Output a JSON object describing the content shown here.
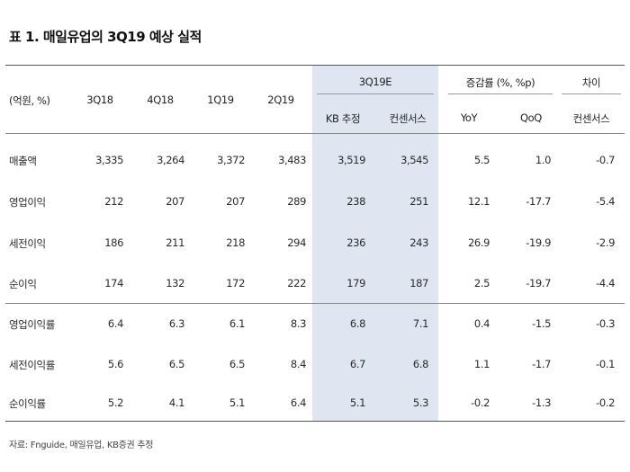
{
  "title": "표 1. 매일유업의 3Q19 예상 실적",
  "header": {
    "unit": "(억원, %)",
    "periods": [
      "3Q18",
      "4Q18",
      "1Q19",
      "2Q19"
    ],
    "estimate_group": "3Q19E",
    "estimate_cols": [
      "KB 추정",
      "컨센서스"
    ],
    "growth_group": "증감률 (%, %p)",
    "growth_cols": [
      "YoY",
      "QoQ"
    ],
    "diff_group": "차이",
    "diff_col": "컨센서스"
  },
  "rows": [
    {
      "label": "매출액",
      "values": [
        "3,335",
        "3,264",
        "3,372",
        "3,483",
        "3,519",
        "3,545",
        "5.5",
        "1.0",
        "-0.7"
      ]
    },
    {
      "label": "영업이익",
      "values": [
        "212",
        "207",
        "207",
        "289",
        "238",
        "251",
        "12.1",
        "-17.7",
        "-5.4"
      ]
    },
    {
      "label": "세전이익",
      "values": [
        "186",
        "211",
        "218",
        "294",
        "236",
        "243",
        "26.9",
        "-19.9",
        "-2.9"
      ]
    },
    {
      "label": "순이익",
      "values": [
        "174",
        "132",
        "172",
        "222",
        "179",
        "187",
        "2.5",
        "-19.7",
        "-4.4"
      ]
    },
    {
      "label": "영업이익률",
      "values": [
        "6.4",
        "6.3",
        "6.1",
        "8.3",
        "6.8",
        "7.1",
        "0.4",
        "-1.5",
        "-0.3"
      ]
    },
    {
      "label": "세전이익률",
      "values": [
        "5.6",
        "6.5",
        "6.5",
        "8.4",
        "6.7",
        "6.8",
        "1.1",
        "-1.7",
        "-0.1"
      ]
    },
    {
      "label": "순이익률",
      "values": [
        "5.2",
        "4.1",
        "5.1",
        "6.4",
        "5.1",
        "5.3",
        "-0.2",
        "-1.3",
        "-0.2"
      ]
    }
  ],
  "source": "자료: Fnguide, 매일유업, KB증권 추정"
}
